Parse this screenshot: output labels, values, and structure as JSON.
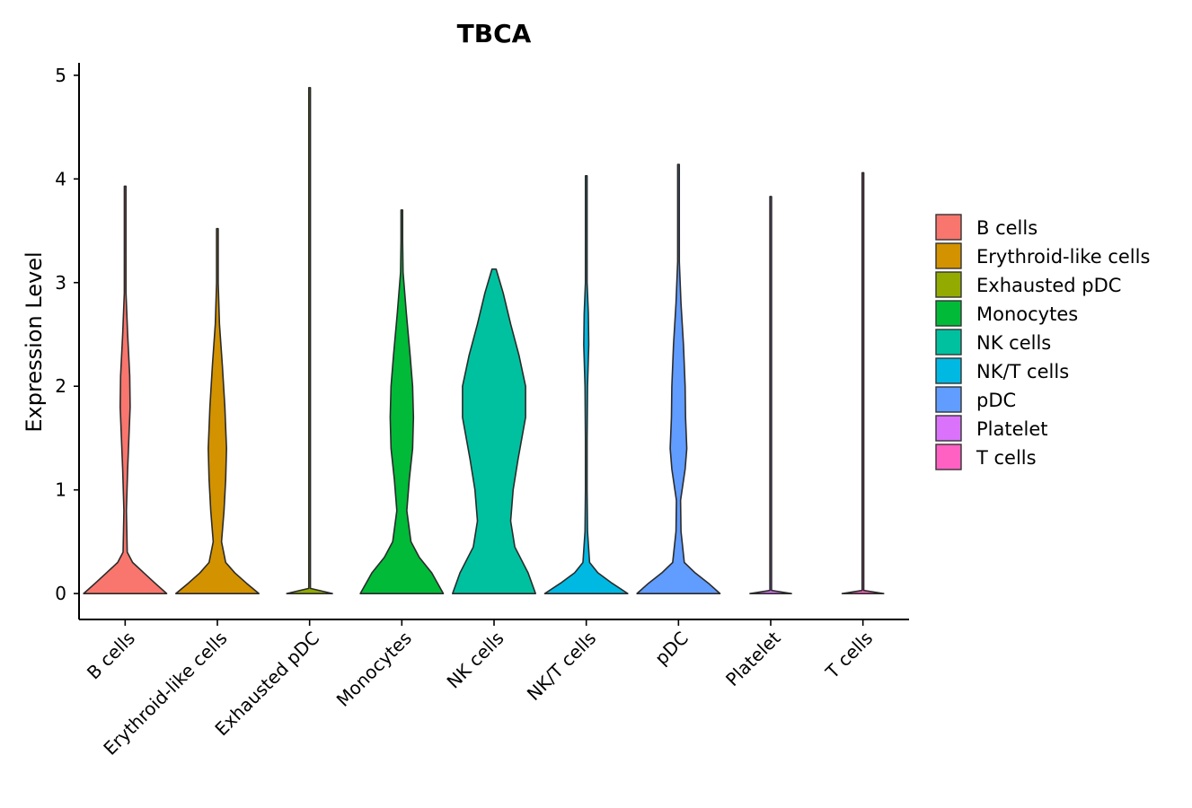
{
  "chart_data": {
    "type": "violin",
    "title": "TBCA",
    "xlabel": "",
    "ylabel": "Expression Level",
    "ylim": [
      -0.25,
      5.12
    ],
    "yticks": [
      0,
      1,
      2,
      3,
      4,
      5
    ],
    "categories": [
      "B cells",
      "Erythroid-like cells",
      "Exhausted pDC",
      "Monocytes",
      "NK cells",
      "NK/T cells",
      "pDC",
      "Platelet",
      "T cells"
    ],
    "colors": [
      "#F8766D",
      "#D39200",
      "#93AA00",
      "#00BA38",
      "#00C19F",
      "#00B9E3",
      "#619CFF",
      "#DB72FB",
      "#FF61C3"
    ],
    "legend_position": "right",
    "series": [
      {
        "name": "B cells",
        "max": 3.93,
        "profile": [
          [
            0,
            1.0
          ],
          [
            0.1,
            0.72
          ],
          [
            0.2,
            0.45
          ],
          [
            0.3,
            0.18
          ],
          [
            0.4,
            0.05
          ],
          [
            0.8,
            0.03
          ],
          [
            1.2,
            0.06
          ],
          [
            1.5,
            0.09
          ],
          [
            1.8,
            0.12
          ],
          [
            2.1,
            0.11
          ],
          [
            2.5,
            0.06
          ],
          [
            2.9,
            0.02
          ],
          [
            3.3,
            0.005
          ],
          [
            3.93,
            0.0
          ]
        ]
      },
      {
        "name": "Erythroid-like cells",
        "max": 3.52,
        "profile": [
          [
            0,
            1.0
          ],
          [
            0.1,
            0.7
          ],
          [
            0.2,
            0.42
          ],
          [
            0.3,
            0.2
          ],
          [
            0.5,
            0.1
          ],
          [
            0.8,
            0.16
          ],
          [
            1.1,
            0.2
          ],
          [
            1.4,
            0.22
          ],
          [
            1.8,
            0.18
          ],
          [
            2.2,
            0.12
          ],
          [
            2.6,
            0.05
          ],
          [
            3.0,
            0.015
          ],
          [
            3.52,
            0.0
          ]
        ]
      },
      {
        "name": "Exhausted pDC",
        "max": 4.88,
        "profile": [
          [
            0,
            0.55
          ],
          [
            0.05,
            0.02
          ],
          [
            0.1,
            0.008
          ],
          [
            4.88,
            0.006
          ]
        ]
      },
      {
        "name": "Monocytes",
        "max": 3.7,
        "profile": [
          [
            0,
            1.0
          ],
          [
            0.2,
            0.72
          ],
          [
            0.35,
            0.42
          ],
          [
            0.5,
            0.22
          ],
          [
            0.8,
            0.12
          ],
          [
            1.1,
            0.18
          ],
          [
            1.4,
            0.26
          ],
          [
            1.7,
            0.28
          ],
          [
            2.0,
            0.26
          ],
          [
            2.3,
            0.2
          ],
          [
            2.7,
            0.11
          ],
          [
            3.1,
            0.03
          ],
          [
            3.4,
            0.01
          ],
          [
            3.7,
            0.0
          ]
        ]
      },
      {
        "name": "NK cells",
        "max": 3.13,
        "profile": [
          [
            0,
            1.0
          ],
          [
            0.2,
            0.82
          ],
          [
            0.45,
            0.5
          ],
          [
            0.7,
            0.4
          ],
          [
            1.0,
            0.46
          ],
          [
            1.3,
            0.58
          ],
          [
            1.7,
            0.76
          ],
          [
            2.0,
            0.76
          ],
          [
            2.3,
            0.6
          ],
          [
            2.6,
            0.4
          ],
          [
            2.9,
            0.22
          ],
          [
            3.13,
            0.05
          ]
        ]
      },
      {
        "name": "NK/T cells",
        "max": 4.03,
        "profile": [
          [
            0,
            1.0
          ],
          [
            0.1,
            0.62
          ],
          [
            0.2,
            0.28
          ],
          [
            0.3,
            0.08
          ],
          [
            0.6,
            0.03
          ],
          [
            1.0,
            0.015
          ],
          [
            1.5,
            0.02
          ],
          [
            2.0,
            0.03
          ],
          [
            2.4,
            0.06
          ],
          [
            2.7,
            0.05
          ],
          [
            3.0,
            0.02
          ],
          [
            3.5,
            0.005
          ],
          [
            4.03,
            0.0
          ]
        ]
      },
      {
        "name": "pDC",
        "max": 4.14,
        "profile": [
          [
            0,
            1.0
          ],
          [
            0.1,
            0.72
          ],
          [
            0.2,
            0.4
          ],
          [
            0.3,
            0.14
          ],
          [
            0.6,
            0.06
          ],
          [
            0.9,
            0.05
          ],
          [
            1.2,
            0.16
          ],
          [
            1.4,
            0.2
          ],
          [
            1.7,
            0.17
          ],
          [
            2.0,
            0.16
          ],
          [
            2.4,
            0.12
          ],
          [
            2.8,
            0.06
          ],
          [
            3.2,
            0.02
          ],
          [
            3.6,
            0.006
          ],
          [
            4.14,
            0.0
          ]
        ]
      },
      {
        "name": "Platelet",
        "max": 3.83,
        "profile": [
          [
            0,
            0.5
          ],
          [
            0.03,
            0.01
          ],
          [
            0.1,
            0.004
          ],
          [
            3.83,
            0.003
          ]
        ]
      },
      {
        "name": "T cells",
        "max": 4.06,
        "profile": [
          [
            0,
            0.5
          ],
          [
            0.03,
            0.01
          ],
          [
            0.1,
            0.004
          ],
          [
            4.06,
            0.003
          ]
        ]
      }
    ]
  }
}
